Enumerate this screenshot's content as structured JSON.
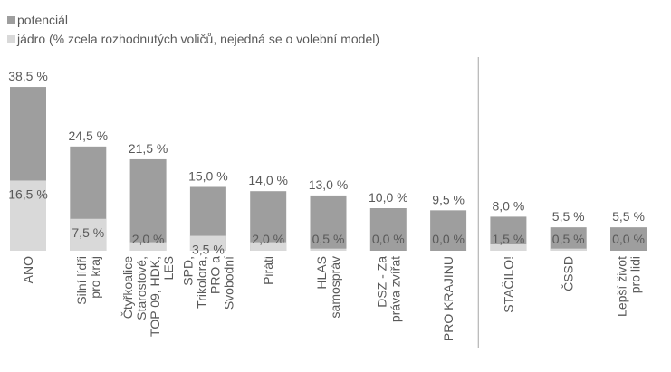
{
  "colors": {
    "potential": "#9e9e9e",
    "core": "#d9d9d9",
    "text": "#595959",
    "divider": "#a6a6a6"
  },
  "chart_data": {
    "type": "bar",
    "stacked": "overlay",
    "title": "",
    "xlabel": "",
    "ylabel": "",
    "ylim": [
      0,
      40
    ],
    "grid": false,
    "legend_position": "top-left",
    "categories": [
      "ANO",
      "Silní lídři pro kraj",
      "Čtyřkoalice Starostové, TOP 09, HDK, LES",
      "SPD, Trikolora, PRO a Svobodní",
      "Piráti",
      "HLAS samospráv",
      "DSZ - Za práva zvířat",
      "PRO KRAJINU",
      "STAČILO!",
      "ČSSD",
      "Lepší život pro lidi"
    ],
    "series": [
      {
        "name": "potenciál",
        "values": [
          38.5,
          24.5,
          21.5,
          15.0,
          14.0,
          13.0,
          10.0,
          9.5,
          8.0,
          5.5,
          5.5
        ],
        "labels": [
          "38,5 %",
          "24,5 %",
          "21,5 %",
          "15,0 %",
          "14,0 %",
          "13,0 %",
          "10,0 %",
          "9,5 %",
          "8,0 %",
          "5,5 %",
          "5,5 %"
        ]
      },
      {
        "name": "jádro (% zcela rozhodnutých voličů, nejedná se o volební model)",
        "values": [
          16.5,
          7.5,
          2.0,
          3.5,
          2.0,
          0.5,
          0.0,
          0.0,
          1.5,
          0.5,
          0.0
        ],
        "labels": [
          "16,5 %",
          "7,5 %",
          "2,0 %",
          "3,5 %",
          "2,0 %",
          "0,5 %",
          "0,0 %",
          "0,0 %",
          "1,5 %",
          "0,5 %",
          "0,0 %"
        ]
      }
    ],
    "divider_after_index": 7
  }
}
